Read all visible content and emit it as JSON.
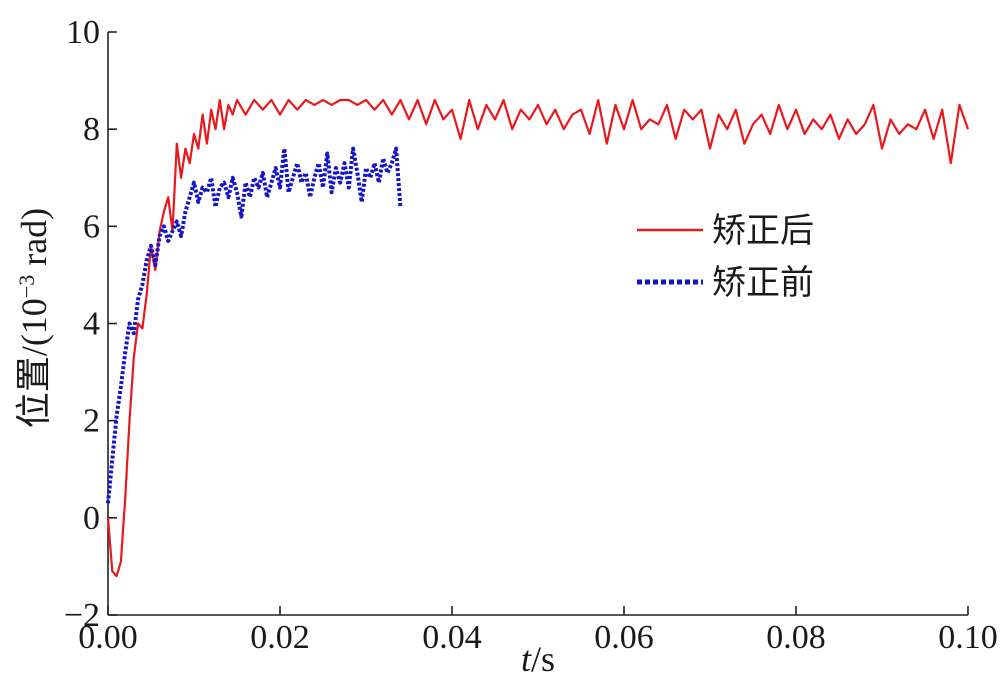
{
  "chart_data": {
    "type": "line",
    "xlabel_italic": "t",
    "xlabel_unit": "/s",
    "ylabel_main": "位置/(10",
    "ylabel_exp": "−3",
    "ylabel_tail": " rad)",
    "xlim": [
      0.0,
      0.1
    ],
    "ylim": [
      -2,
      10
    ],
    "x_ticks": [
      "0.00",
      "0.02",
      "0.04",
      "0.06",
      "0.08",
      "0.10"
    ],
    "y_ticks": [
      "−2",
      "0",
      "2",
      "4",
      "6",
      "8",
      "10"
    ],
    "grid": false,
    "legend_position": "right",
    "series": [
      {
        "name": "矫正后",
        "color": "#e8191d",
        "style": "solid",
        "x": [
          0.0,
          0.0005,
          0.001,
          0.0015,
          0.002,
          0.0025,
          0.003,
          0.0035,
          0.004,
          0.0045,
          0.005,
          0.0055,
          0.006,
          0.0065,
          0.007,
          0.0075,
          0.008,
          0.0085,
          0.009,
          0.0095,
          0.01,
          0.0105,
          0.011,
          0.0115,
          0.012,
          0.0125,
          0.013,
          0.0135,
          0.014,
          0.0145,
          0.015,
          0.016,
          0.017,
          0.018,
          0.019,
          0.02,
          0.021,
          0.022,
          0.023,
          0.024,
          0.025,
          0.026,
          0.027,
          0.028,
          0.029,
          0.03,
          0.031,
          0.032,
          0.033,
          0.034,
          0.035,
          0.036,
          0.037,
          0.038,
          0.039,
          0.04,
          0.041,
          0.042,
          0.043,
          0.044,
          0.045,
          0.046,
          0.047,
          0.048,
          0.049,
          0.05,
          0.051,
          0.052,
          0.053,
          0.054,
          0.055,
          0.056,
          0.057,
          0.058,
          0.059,
          0.06,
          0.061,
          0.062,
          0.063,
          0.064,
          0.065,
          0.066,
          0.067,
          0.068,
          0.069,
          0.07,
          0.071,
          0.072,
          0.073,
          0.074,
          0.075,
          0.076,
          0.077,
          0.078,
          0.079,
          0.08,
          0.081,
          0.082,
          0.083,
          0.084,
          0.085,
          0.086,
          0.087,
          0.088,
          0.089,
          0.09,
          0.091,
          0.092,
          0.093,
          0.094,
          0.095,
          0.096,
          0.097,
          0.098,
          0.099,
          0.1
        ],
        "y": [
          0.0,
          -1.1,
          -1.2,
          -0.9,
          0.4,
          2.0,
          3.3,
          4.0,
          3.9,
          4.6,
          5.6,
          5.1,
          5.9,
          6.3,
          6.6,
          5.9,
          7.7,
          7.0,
          7.6,
          7.3,
          7.9,
          7.6,
          8.3,
          7.7,
          8.4,
          8.0,
          8.6,
          8.0,
          8.5,
          8.3,
          8.6,
          8.3,
          8.6,
          8.4,
          8.6,
          8.3,
          8.6,
          8.4,
          8.6,
          8.5,
          8.6,
          8.5,
          8.6,
          8.6,
          8.5,
          8.6,
          8.4,
          8.6,
          8.3,
          8.6,
          8.2,
          8.6,
          8.1,
          8.6,
          8.2,
          8.4,
          7.8,
          8.6,
          8.0,
          8.5,
          8.2,
          8.6,
          8.0,
          8.4,
          8.2,
          8.5,
          8.1,
          8.4,
          8.0,
          8.3,
          8.4,
          7.9,
          8.6,
          7.7,
          8.5,
          8.0,
          8.6,
          8.0,
          8.2,
          8.1,
          8.5,
          7.8,
          8.4,
          8.2,
          8.4,
          7.6,
          8.3,
          8.0,
          8.4,
          7.7,
          8.1,
          8.3,
          7.9,
          8.5,
          8.0,
          8.4,
          7.9,
          8.2,
          8.0,
          8.3,
          7.8,
          8.2,
          7.9,
          8.1,
          8.5,
          7.6,
          8.2,
          7.9,
          8.1,
          8.0,
          8.4,
          7.8,
          8.4,
          7.3,
          8.5,
          8.0
        ]
      },
      {
        "name": "矫正前",
        "color": "#1414c8",
        "style": "dotted",
        "x": [
          0.0,
          0.0005,
          0.001,
          0.0015,
          0.002,
          0.0025,
          0.003,
          0.0035,
          0.004,
          0.0045,
          0.005,
          0.0055,
          0.006,
          0.0065,
          0.007,
          0.0075,
          0.008,
          0.0085,
          0.009,
          0.0095,
          0.01,
          0.0105,
          0.011,
          0.0115,
          0.012,
          0.0125,
          0.013,
          0.0135,
          0.014,
          0.0145,
          0.015,
          0.0155,
          0.016,
          0.0165,
          0.017,
          0.0175,
          0.018,
          0.0185,
          0.019,
          0.0195,
          0.02,
          0.0205,
          0.021,
          0.0215,
          0.022,
          0.0225,
          0.023,
          0.0235,
          0.024,
          0.0245,
          0.025,
          0.0255,
          0.026,
          0.0265,
          0.027,
          0.0275,
          0.028,
          0.0285,
          0.029,
          0.0295,
          0.03,
          0.0305,
          0.031,
          0.0315,
          0.032,
          0.0325,
          0.033,
          0.0335,
          0.034
        ],
        "y": [
          0.3,
          1.2,
          2.1,
          2.7,
          3.4,
          4.0,
          3.8,
          4.5,
          4.8,
          5.3,
          5.6,
          5.2,
          5.8,
          6.0,
          5.7,
          5.9,
          6.1,
          5.8,
          6.3,
          6.6,
          6.9,
          6.5,
          6.8,
          6.7,
          7.0,
          6.4,
          6.8,
          6.9,
          6.6,
          7.0,
          6.7,
          6.2,
          6.9,
          6.6,
          7.0,
          6.8,
          7.1,
          6.6,
          6.9,
          7.2,
          6.8,
          7.6,
          6.7,
          7.0,
          7.3,
          6.9,
          7.1,
          6.6,
          7.0,
          7.3,
          6.8,
          7.5,
          6.7,
          7.2,
          6.9,
          7.3,
          6.8,
          7.6,
          7.1,
          6.5,
          7.2,
          7.0,
          7.3,
          6.9,
          7.4,
          7.1,
          7.3,
          7.6,
          6.4
        ]
      }
    ]
  }
}
